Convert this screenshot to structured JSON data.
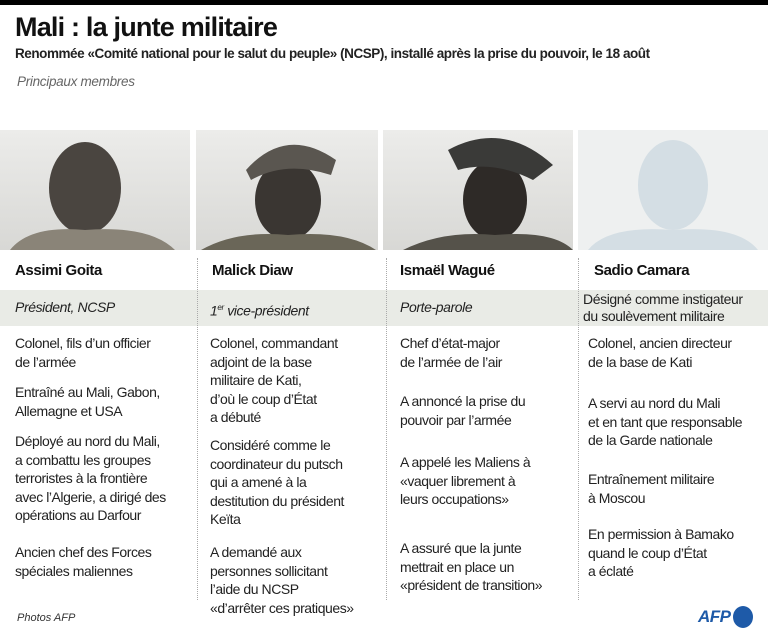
{
  "header": {
    "title": "Mali : la junte militaire",
    "subtitle": "Renommée «Comité national pour le salut du peuple» (NCSP), installé après la prise du pouvoir, le 18 août",
    "section": "Principaux membres"
  },
  "members": [
    {
      "name": "Assimi Goita",
      "role": "Président, NCSP",
      "facts": [
        "Colonel, fils d’un officier\nde l’armée",
        "Entraîné au Mali, Gabon,\nAllemagne et USA",
        "Déployé au nord du Mali,\na combattu les groupes\nterroristes à la frontière\navec  l’Algerie, a dirigé des\nopérations au Darfour",
        "Ancien chef des Forces\nspéciales maliennes"
      ]
    },
    {
      "name": "Malick Diaw",
      "role_sup": "er",
      "role_num": "1",
      "role": " vice-président",
      "facts": [
        "Colonel, commandant\nadjoint de la base\nmilitaire de Kati,\nd’où le coup d’État\na débuté",
        "Considéré comme le\ncoordinateur du putsch\nqui a amené à la\ndestitution du président\nKeïta",
        "A demandé aux\npersonnes sollicitant\nl’aide du NCSP\n«d’arrêter ces pratiques»"
      ]
    },
    {
      "name": "Ismaël Wagué",
      "role": "Porte-parole",
      "facts": [
        "Chef d’état-major\nde l’armée de l’air",
        "A annoncé la prise du\npouvoir par l’armée",
        "A appelé les Maliens à\n«vaquer librement à\nleurs occupations»",
        "A assuré que la junte\nmettrait en place un\n«président de transition»"
      ]
    },
    {
      "name": "Sadio Camara",
      "role": "Désigné comme instigateur\ndu soulèvement militaire",
      "facts": [
        "Colonel, ancien directeur\nde la base de Kati",
        "A servi au nord du Mali\net en tant que responsable\nde la Garde nationale",
        "Entraînement militaire\nà Moscou",
        "En permission à Bamako\nquand le coup d’État\na éclaté"
      ]
    }
  ],
  "footer": {
    "credit": "Photos AFP",
    "logo": "AFP"
  },
  "colors": {
    "band": "#e9ebe6",
    "afp_blue": "#1e5aa8"
  }
}
